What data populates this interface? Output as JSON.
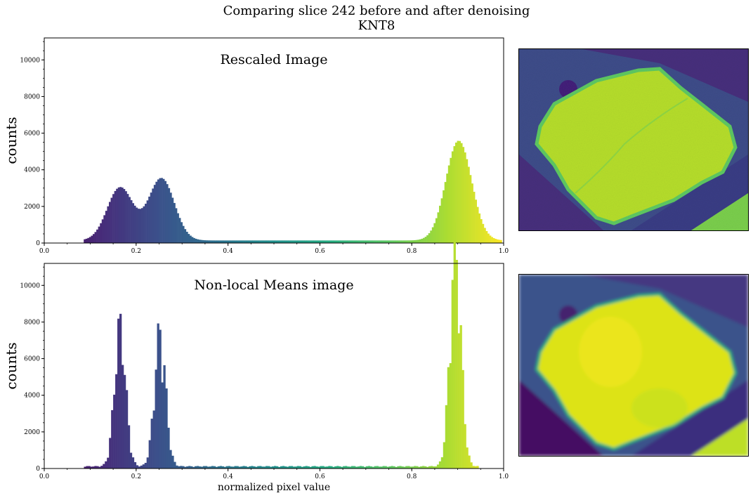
{
  "suptitle": {
    "line1": "Comparing slice 242 before and after denoising",
    "line2": "KNT8"
  },
  "chart_data": [
    {
      "type": "bar",
      "subtype": "histogram",
      "title": "Rescaled Image",
      "ylabel": "counts",
      "xlabel": "",
      "xlim": [
        0.0,
        1.0
      ],
      "ylim": [
        0,
        11200
      ],
      "xticks": [
        "0.0",
        "0.2",
        "0.4",
        "0.6",
        "0.8",
        "1.0"
      ],
      "yticks": [
        "0",
        "2000",
        "4000",
        "6000",
        "8000",
        "10000"
      ],
      "colormap": "viridis",
      "peaks": [
        {
          "center": 0.165,
          "height": 2900
        },
        {
          "center": 0.255,
          "height": 3400
        },
        {
          "center": 0.902,
          "height": 5450
        }
      ],
      "background_level": 140
    },
    {
      "type": "bar",
      "subtype": "histogram",
      "title": "Non-local Means image",
      "ylabel": "counts",
      "xlabel": "normalized pixel value",
      "xlim": [
        0.0,
        1.0
      ],
      "ylim": [
        0,
        11200
      ],
      "xticks": [
        "0.0",
        "0.2",
        "0.4",
        "0.6",
        "0.8",
        "1.0"
      ],
      "yticks": [
        "0",
        "2000",
        "4000",
        "6000",
        "8000",
        "10000"
      ],
      "colormap": "viridis",
      "peaks": [
        {
          "center": 0.165,
          "height": 6950
        },
        {
          "center": 0.252,
          "height": 6650
        },
        {
          "center": 0.895,
          "height": 10750
        }
      ],
      "background_level": 110
    }
  ],
  "images": [
    {
      "name": "rescaled-slice-image",
      "colormap": "viridis"
    },
    {
      "name": "denoised-slice-image",
      "colormap": "viridis"
    }
  ],
  "colors": {
    "viridis_dark": "#440154",
    "viridis_blue": "#31688e",
    "viridis_teal": "#21918c",
    "viridis_green": "#35b779",
    "viridis_yellow": "#fde725"
  }
}
